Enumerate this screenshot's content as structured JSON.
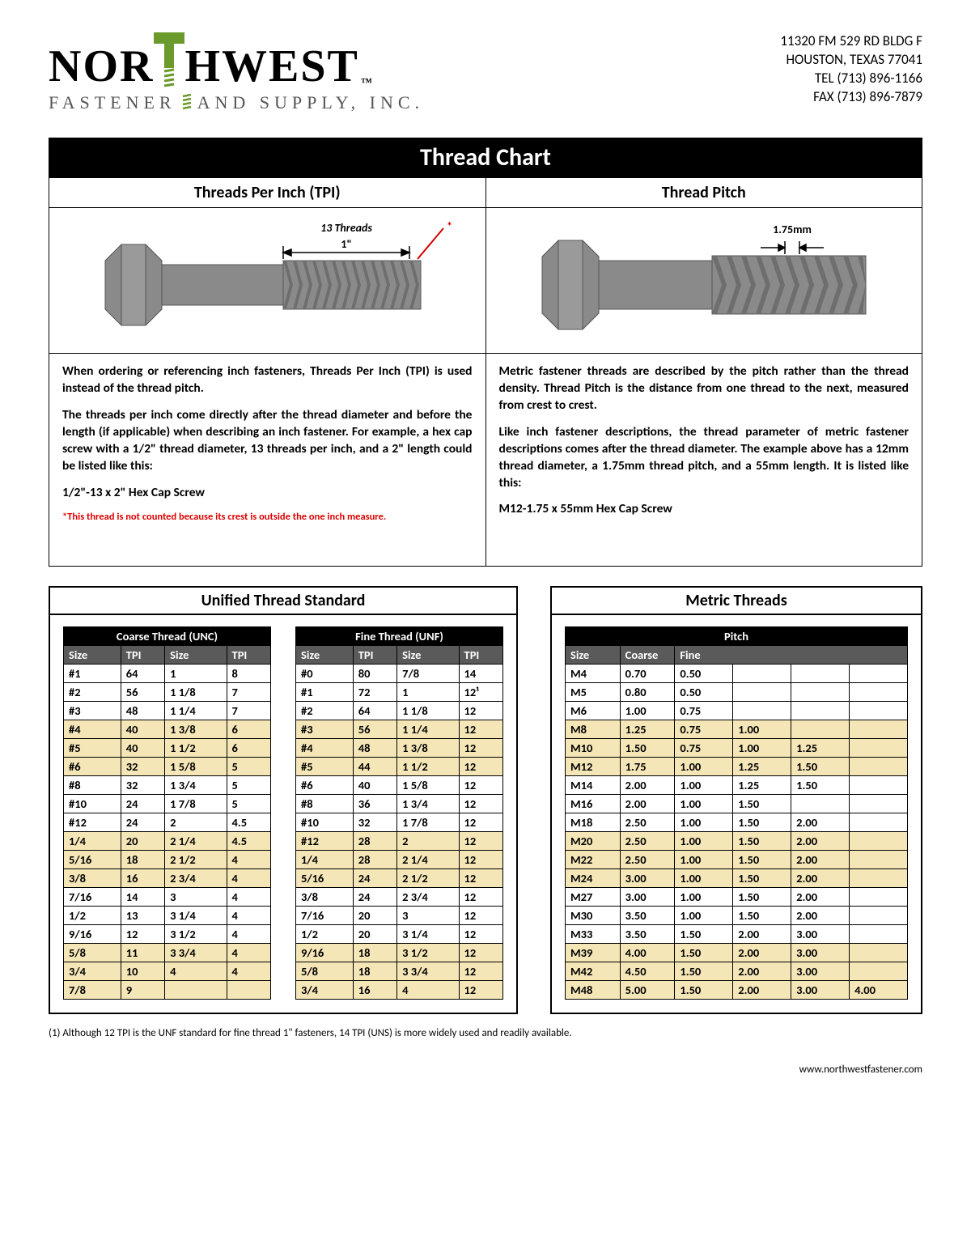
{
  "company": {
    "name_top_left": "NOR",
    "name_top_right": "HWEST",
    "sub_left": "FASTENER",
    "sub_right": "AND  SUPPLY,  INC.",
    "tm": "™"
  },
  "address": {
    "line1": "11320 FM 529 RD BLDG F",
    "line2": "HOUSTON, TEXAS 77041",
    "line3": "TEL (713) 896-1166",
    "line4": "FAX (713) 896-7879"
  },
  "title": "Thread Chart",
  "tpi": {
    "heading": "Threads Per Inch (TPI)",
    "label_threads": "13 Threads",
    "label_span": "1\"",
    "asterisk": "*",
    "p1": "When ordering or referencing inch fasteners, Threads Per Inch (TPI) is used instead of the thread pitch.",
    "p2": "The threads per inch come directly after the thread diameter and before the length (if applicable) when describing an inch fastener. For example, a hex cap screw with a 1/2\" thread diameter, 13 threads per inch, and a 2\" length could be listed like this:",
    "example": "1/2\"-13 x 2\" Hex Cap Screw",
    "footnote": "*This thread is not counted because its crest is outside the one inch measure."
  },
  "pitch": {
    "heading": "Thread Pitch",
    "label": "1.75mm",
    "p1": "Metric fastener threads are described by the pitch rather than the thread density. Thread Pitch is the distance from one thread to the next, measured from crest to crest.",
    "p2": "Like inch fastener descriptions, the thread parameter of metric fastener descriptions comes after the thread diameter. The example above has a 12mm thread diameter, a 1.75mm thread pitch, and a 55mm length. It is listed like this:",
    "example": "M12-1.75 x 55mm Hex Cap Screw"
  },
  "uts_title": "Unified Thread Standard",
  "metric_title": "Metric Threads",
  "unc": {
    "title": "Coarse Thread (UNC)",
    "cols": [
      "Size",
      "TPI",
      "Size",
      "TPI"
    ],
    "rows": [
      [
        "#1",
        "64",
        "1",
        "8"
      ],
      [
        "#2",
        "56",
        "1 1/8",
        "7"
      ],
      [
        "#3",
        "48",
        "1 1/4",
        "7"
      ],
      [
        "#4",
        "40",
        "1 3/8",
        "6"
      ],
      [
        "#5",
        "40",
        "1 1/2",
        "6"
      ],
      [
        "#6",
        "32",
        "1 5/8",
        "5"
      ],
      [
        "#8",
        "32",
        "1 3/4",
        "5"
      ],
      [
        "#10",
        "24",
        "1 7/8",
        "5"
      ],
      [
        "#12",
        "24",
        "2",
        "4.5"
      ],
      [
        "1/4",
        "20",
        "2 1/4",
        "4.5"
      ],
      [
        "5/16",
        "18",
        "2 1/2",
        "4"
      ],
      [
        "3/8",
        "16",
        "2 3/4",
        "4"
      ],
      [
        "7/16",
        "14",
        "3",
        "4"
      ],
      [
        "1/2",
        "13",
        "3 1/4",
        "4"
      ],
      [
        "9/16",
        "12",
        "3 1/2",
        "4"
      ],
      [
        "5/8",
        "11",
        "3 3/4",
        "4"
      ],
      [
        "3/4",
        "10",
        "4",
        "4"
      ],
      [
        "7/8",
        "9",
        "",
        ""
      ]
    ],
    "stripes": [
      3,
      4,
      5,
      9,
      10,
      11,
      15,
      16,
      17
    ]
  },
  "unf": {
    "title": "Fine Thread (UNF)",
    "cols": [
      "Size",
      "TPI",
      "Size",
      "TPI"
    ],
    "rows": [
      [
        "#0",
        "80",
        "7/8",
        "14"
      ],
      [
        "#1",
        "72",
        "1",
        "12¹"
      ],
      [
        "#2",
        "64",
        "1 1/8",
        "12"
      ],
      [
        "#3",
        "56",
        "1 1/4",
        "12"
      ],
      [
        "#4",
        "48",
        "1 3/8",
        "12"
      ],
      [
        "#5",
        "44",
        "1 1/2",
        "12"
      ],
      [
        "#6",
        "40",
        "1 5/8",
        "12"
      ],
      [
        "#8",
        "36",
        "1 3/4",
        "12"
      ],
      [
        "#10",
        "32",
        "1 7/8",
        "12"
      ],
      [
        "#12",
        "28",
        "2",
        "12"
      ],
      [
        "1/4",
        "28",
        "2 1/4",
        "12"
      ],
      [
        "5/16",
        "24",
        "2 1/2",
        "12"
      ],
      [
        "3/8",
        "24",
        "2 3/4",
        "12"
      ],
      [
        "7/16",
        "20",
        "3",
        "12"
      ],
      [
        "1/2",
        "20",
        "3 1/4",
        "12"
      ],
      [
        "9/16",
        "18",
        "3 1/2",
        "12"
      ],
      [
        "5/8",
        "18",
        "3 3/4",
        "12"
      ],
      [
        "3/4",
        "16",
        "4",
        "12"
      ]
    ],
    "stripes": [
      3,
      4,
      5,
      9,
      10,
      11,
      15,
      16,
      17
    ]
  },
  "metric": {
    "title": "Pitch",
    "cols": [
      "Size",
      "Coarse",
      "Fine"
    ],
    "rows": [
      [
        "M4",
        "0.70",
        "0.50",
        "",
        "",
        ""
      ],
      [
        "M5",
        "0.80",
        "0.50",
        "",
        "",
        ""
      ],
      [
        "M6",
        "1.00",
        "0.75",
        "",
        "",
        ""
      ],
      [
        "M8",
        "1.25",
        "0.75",
        "1.00",
        "",
        ""
      ],
      [
        "M10",
        "1.50",
        "0.75",
        "1.00",
        "1.25",
        ""
      ],
      [
        "M12",
        "1.75",
        "1.00",
        "1.25",
        "1.50",
        ""
      ],
      [
        "M14",
        "2.00",
        "1.00",
        "1.25",
        "1.50",
        ""
      ],
      [
        "M16",
        "2.00",
        "1.00",
        "1.50",
        "",
        ""
      ],
      [
        "M18",
        "2.50",
        "1.00",
        "1.50",
        "2.00",
        ""
      ],
      [
        "M20",
        "2.50",
        "1.00",
        "1.50",
        "2.00",
        ""
      ],
      [
        "M22",
        "2.50",
        "1.00",
        "1.50",
        "2.00",
        ""
      ],
      [
        "M24",
        "3.00",
        "1.00",
        "1.50",
        "2.00",
        ""
      ],
      [
        "M27",
        "3.00",
        "1.00",
        "1.50",
        "2.00",
        ""
      ],
      [
        "M30",
        "3.50",
        "1.00",
        "1.50",
        "2.00",
        ""
      ],
      [
        "M33",
        "3.50",
        "1.50",
        "2.00",
        "3.00",
        ""
      ],
      [
        "M39",
        "4.00",
        "1.50",
        "2.00",
        "3.00",
        ""
      ],
      [
        "M42",
        "4.50",
        "1.50",
        "2.00",
        "3.00",
        ""
      ],
      [
        "M48",
        "5.00",
        "1.50",
        "2.00",
        "3.00",
        "4.00"
      ]
    ],
    "stripes": [
      3,
      4,
      5,
      9,
      10,
      11,
      15,
      16,
      17
    ]
  },
  "note": "(1) Although 12 TPI is the UNF standard for fine thread 1\" fasteners, 14 TPI (UNS) is more widely used and readily available.",
  "url": "www.northwestfastener.com",
  "colors": {
    "green": "#6a9a2b",
    "stripe": "#f5e6b8",
    "gray_head": "#5a5a5a",
    "bolt_fill": "#8a8a8a",
    "bolt_dark": "#6e6e6e",
    "red": "#d00000"
  }
}
